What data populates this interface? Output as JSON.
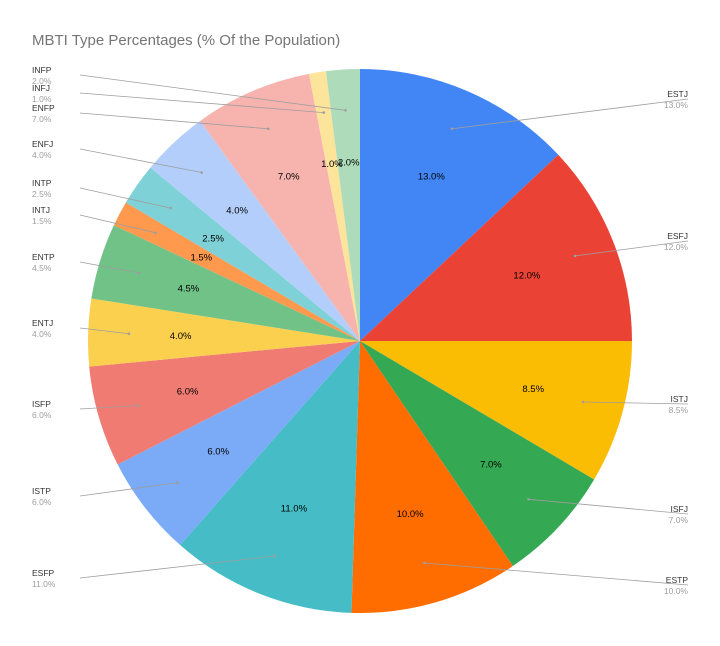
{
  "chart_data": {
    "type": "pie",
    "title": "MBTI Type Percentages (% Of the Population)",
    "slices": [
      {
        "label": "ESTJ",
        "value": 13.0,
        "value_text": "13.0%",
        "color": "#4285f4"
      },
      {
        "label": "ESFJ",
        "value": 12.0,
        "value_text": "12.0%",
        "color": "#ea4335"
      },
      {
        "label": "ISTJ",
        "value": 8.5,
        "value_text": "8.5%",
        "color": "#fbbc04"
      },
      {
        "label": "ISFJ",
        "value": 7.0,
        "value_text": "7.0%",
        "color": "#34a853"
      },
      {
        "label": "ESTP",
        "value": 10.0,
        "value_text": "10.0%",
        "color": "#ff6d01"
      },
      {
        "label": "ESFP",
        "value": 11.0,
        "value_text": "11.0%",
        "color": "#46bdc6"
      },
      {
        "label": "ISTP",
        "value": 6.0,
        "value_text": "6.0%",
        "color": "#7baaf7"
      },
      {
        "label": "ISFP",
        "value": 6.0,
        "value_text": "6.0%",
        "color": "#f07b72"
      },
      {
        "label": "ENTJ",
        "value": 4.0,
        "value_text": "4.0%",
        "color": "#fcd04f"
      },
      {
        "label": "ENTP",
        "value": 4.5,
        "value_text": "4.5%",
        "color": "#71c287"
      },
      {
        "label": "INTJ",
        "value": 1.5,
        "value_text": "1.5%",
        "color": "#ff994d"
      },
      {
        "label": "INTP",
        "value": 2.5,
        "value_text": "2.5%",
        "color": "#7ed1d7"
      },
      {
        "label": "ENFJ",
        "value": 4.0,
        "value_text": "4.0%",
        "color": "#b3cefb"
      },
      {
        "label": "ENFP",
        "value": 7.0,
        "value_text": "7.0%",
        "color": "#f7b4ae"
      },
      {
        "label": "INFJ",
        "value": 1.0,
        "value_text": "1.0%",
        "color": "#fde49b"
      },
      {
        "label": "INFP",
        "value": 2.0,
        "value_text": "2.0%",
        "color": "#aedcba"
      }
    ],
    "legend": "callout labels outside the pie"
  }
}
